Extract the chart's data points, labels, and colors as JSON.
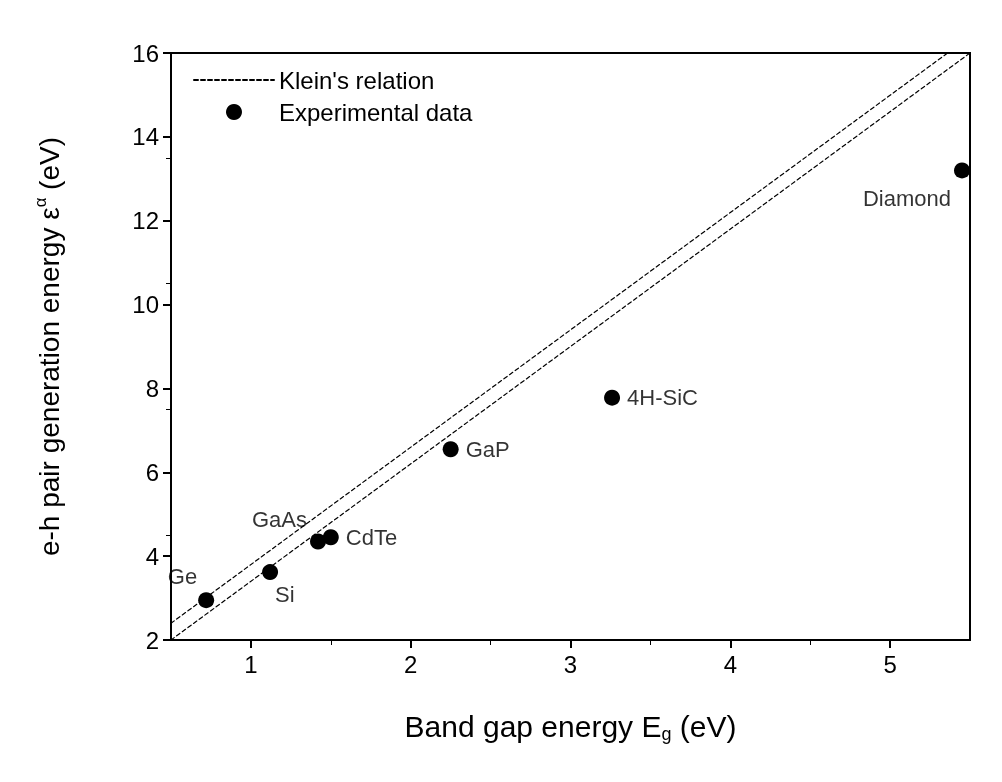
{
  "chart_data": {
    "type": "scatter",
    "xlabel": "Band gap energy E$_{g}$ (eV)",
    "ylabel": "e-h pair generation energy ε$^{α}$ (eV)",
    "xlim": [
      0.5,
      5.5
    ],
    "xticks": [
      1,
      2,
      3,
      4,
      5
    ],
    "ylim": [
      2,
      16
    ],
    "yticks": [
      2,
      4,
      6,
      8,
      10,
      12,
      14,
      16
    ],
    "grid": false,
    "legend": "top left",
    "marker": "circle",
    "series": [
      {
        "name": "Klein's relation",
        "type": "line",
        "color": "#000000",
        "line_style": "dashed",
        "marker": "none",
        "x": [
          0.5,
          5.36
        ],
        "values": [
          2.4,
          16.0
        ]
      },
      {
        "type": "line",
        "color": "#000000",
        "line_style": "dashed",
        "marker": "none",
        "x": [
          0.5,
          5.5
        ],
        "values": [
          2.0,
          16.0
        ]
      },
      {
        "name": "Experimental data",
        "color": "#000000",
        "x": [
          0.72,
          1.12,
          1.42,
          1.5,
          2.25,
          3.26,
          5.45
        ],
        "values": [
          2.95,
          3.62,
          4.35,
          4.45,
          6.55,
          7.78,
          13.2
        ]
      }
    ],
    "annotations": [
      {
        "text": "Ge",
        "x": 0.72,
        "y": 2.95
      },
      {
        "text": "Si",
        "x": 1.12,
        "y": 3.62
      },
      {
        "text": "GaAs",
        "x": 1.42,
        "y": 4.35
      },
      {
        "text": "CdTe",
        "x": 1.5,
        "y": 4.45
      },
      {
        "text": "GaP",
        "x": 2.25,
        "y": 6.55
      },
      {
        "text": "4H-SiC",
        "x": 3.26,
        "y": 7.78
      },
      {
        "text": "Diamond",
        "x": 5.45,
        "y": 13.2
      }
    ]
  }
}
